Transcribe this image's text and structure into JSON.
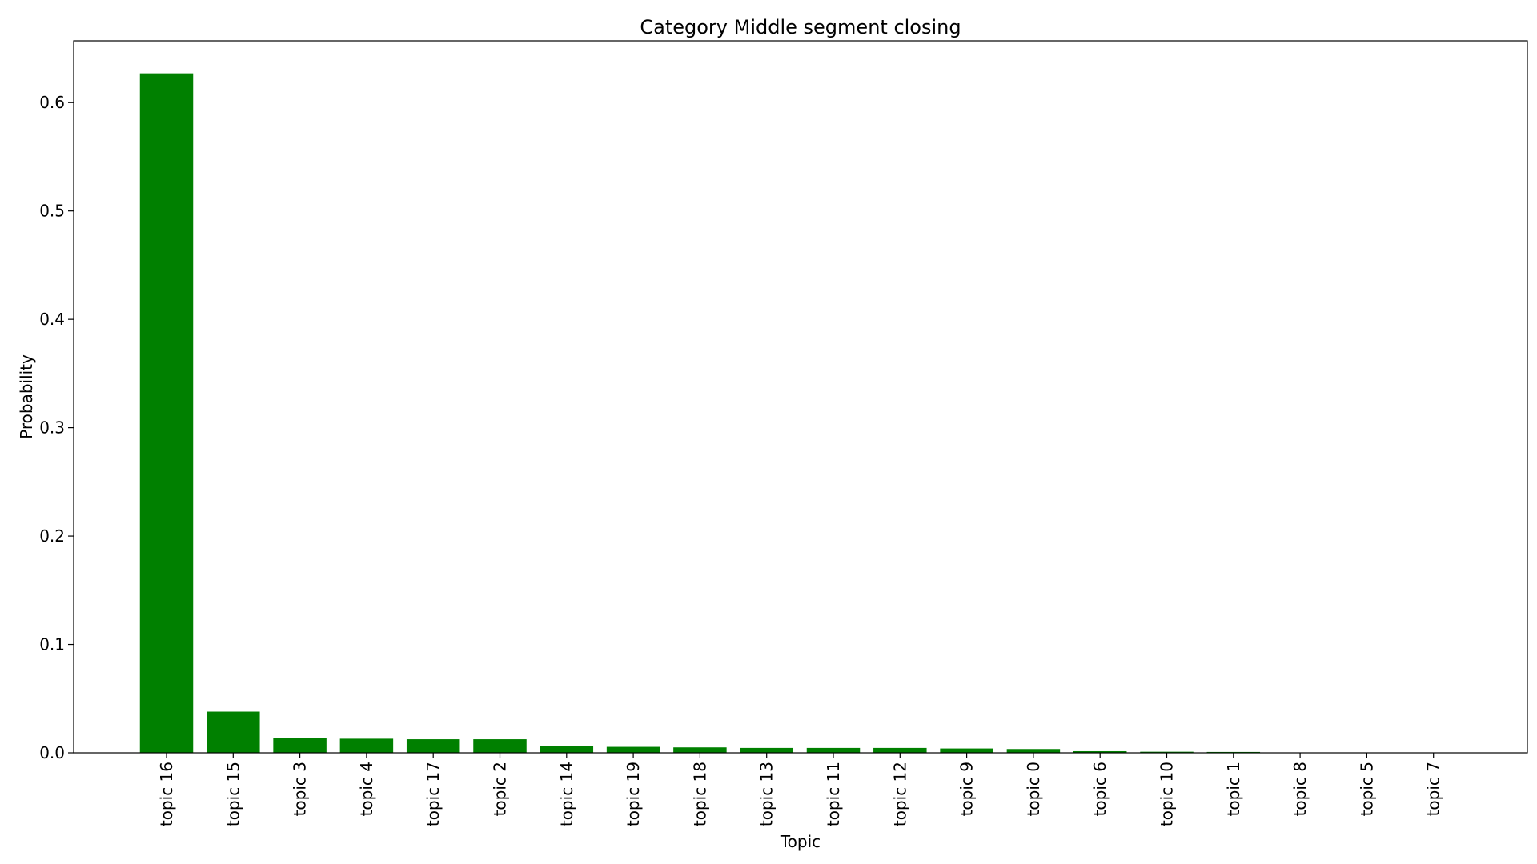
{
  "chart_data": {
    "type": "bar",
    "title": "Category Middle segment closing",
    "xlabel": "Topic",
    "ylabel": "Probability",
    "bar_color": "#008000",
    "ylim": [
      0,
      0.657
    ],
    "yticks": [
      0.0,
      0.1,
      0.2,
      0.3,
      0.4,
      0.5,
      0.6
    ],
    "ytick_labels": [
      "0.0",
      "0.1",
      "0.2",
      "0.3",
      "0.4",
      "0.5",
      "0.6"
    ],
    "grid": false,
    "categories": [
      "topic 16",
      "topic 15",
      "topic 3",
      "topic 4",
      "topic 17",
      "topic 2",
      "topic 14",
      "topic 19",
      "topic 18",
      "topic 13",
      "topic 11",
      "topic 12",
      "topic 9",
      "topic 0",
      "topic 6",
      "topic 10",
      "topic 1",
      "topic 8",
      "topic 5",
      "topic 7"
    ],
    "values": [
      0.627,
      0.038,
      0.014,
      0.013,
      0.0125,
      0.0125,
      0.0065,
      0.0055,
      0.005,
      0.0045,
      0.0045,
      0.0045,
      0.004,
      0.0035,
      0.0015,
      0.001,
      0.0008,
      0.0002,
      0.0002,
      0.0002
    ]
  }
}
